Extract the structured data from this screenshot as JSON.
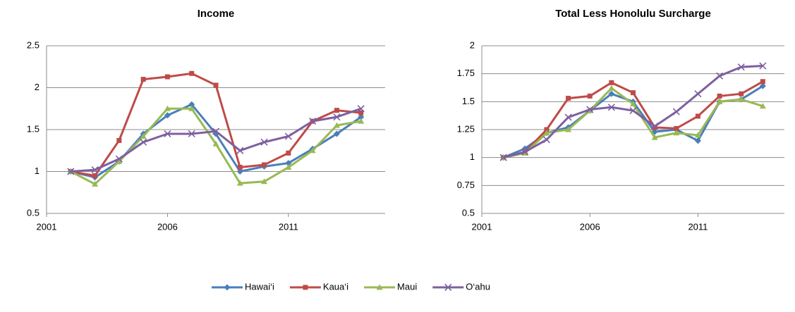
{
  "chart_data": [
    {
      "type": "line",
      "title": "Income",
      "x": [
        2002,
        2003,
        2004,
        2005,
        2006,
        2007,
        2008,
        2009,
        2010,
        2011,
        2012,
        2013,
        2014
      ],
      "xlim": [
        2001,
        2015
      ],
      "xticks": [
        2001,
        2006,
        2011
      ],
      "ylim": [
        0.5,
        2.5
      ],
      "yticks": [
        0.5,
        1,
        1.5,
        2,
        2.5
      ],
      "grid": true,
      "series": [
        {
          "name": "Hawai‘i",
          "color": "#4a7ebb",
          "marker": "diamond",
          "values": [
            1.0,
            0.93,
            1.12,
            1.45,
            1.67,
            1.8,
            1.45,
            1.0,
            1.06,
            1.1,
            1.27,
            1.45,
            1.65
          ]
        },
        {
          "name": "Kaua‘i",
          "color": "#be4b48",
          "marker": "square",
          "values": [
            1.0,
            0.95,
            1.37,
            2.1,
            2.13,
            2.17,
            2.03,
            1.05,
            1.08,
            1.22,
            1.6,
            1.73,
            1.7
          ]
        },
        {
          "name": "Maui",
          "color": "#98b954",
          "marker": "triangle",
          "values": [
            1.0,
            0.85,
            1.12,
            1.42,
            1.75,
            1.75,
            1.33,
            0.86,
            0.88,
            1.05,
            1.25,
            1.55,
            1.6
          ]
        },
        {
          "name": "O‘ahu",
          "color": "#7d60a0",
          "marker": "x",
          "values": [
            1.0,
            1.02,
            1.15,
            1.35,
            1.45,
            1.45,
            1.48,
            1.25,
            1.35,
            1.42,
            1.6,
            1.65,
            1.75
          ]
        }
      ]
    },
    {
      "type": "line",
      "title": "Total Less Honolulu Surcharge",
      "x": [
        2002,
        2003,
        2004,
        2005,
        2006,
        2007,
        2008,
        2009,
        2010,
        2011,
        2012,
        2013,
        2014
      ],
      "xlim": [
        2001,
        2015
      ],
      "xticks": [
        2001,
        2006,
        2011
      ],
      "ylim": [
        0.5,
        2
      ],
      "yticks": [
        0.5,
        0.75,
        1,
        1.25,
        1.5,
        1.75,
        2
      ],
      "grid": true,
      "series": [
        {
          "color": "#4a7ebb",
          "marker": "diamond",
          "values": [
            1.0,
            1.08,
            1.22,
            1.27,
            1.42,
            1.57,
            1.5,
            1.23,
            1.25,
            1.15,
            1.5,
            1.52,
            1.64
          ]
        },
        {
          "color": "#be4b48",
          "marker": "square",
          "values": [
            1.0,
            1.05,
            1.25,
            1.53,
            1.55,
            1.67,
            1.58,
            1.27,
            1.26,
            1.37,
            1.55,
            1.57,
            1.68
          ]
        },
        {
          "color": "#98b954",
          "marker": "triangle",
          "values": [
            1.0,
            1.04,
            1.22,
            1.25,
            1.42,
            1.62,
            1.48,
            1.18,
            1.22,
            1.2,
            1.5,
            1.52,
            1.46
          ]
        },
        {
          "color": "#7d60a0",
          "marker": "x",
          "values": [
            1.0,
            1.05,
            1.16,
            1.36,
            1.43,
            1.45,
            1.42,
            1.28,
            1.41,
            1.57,
            1.73,
            1.81,
            1.82
          ]
        }
      ]
    }
  ]
}
